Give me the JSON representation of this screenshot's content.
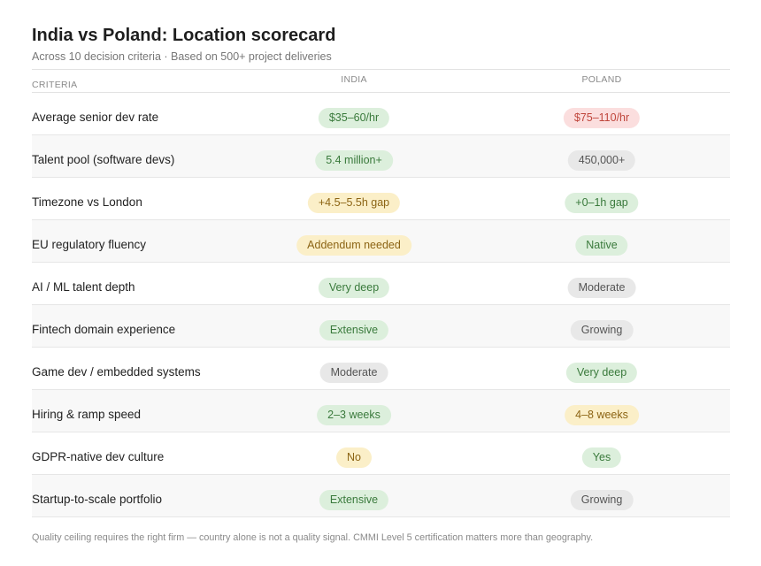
{
  "header": {
    "title": "India vs Poland: Location scorecard",
    "subtitle": "Across 10 decision criteria · Based on 500+ project deliveries"
  },
  "columns": {
    "criteria": "CRITERIA",
    "india": "INDIA",
    "poland": "POLAND"
  },
  "status_colors": {
    "green": "#dcefdc",
    "red": "#fbdede",
    "amber": "#fbefc8",
    "gray": "#e8e8e8"
  },
  "rows": [
    {
      "criterion": "Average senior dev rate",
      "india": "$35–60/hr",
      "india_tone": "green",
      "poland": "$75–110/hr",
      "poland_tone": "red"
    },
    {
      "criterion": "Talent pool (software devs)",
      "india": "5.4 million+",
      "india_tone": "green",
      "poland": "450,000+",
      "poland_tone": "gray"
    },
    {
      "criterion": "Timezone vs London",
      "india": "+4.5–5.5h gap",
      "india_tone": "amber",
      "poland": "+0–1h gap",
      "poland_tone": "green"
    },
    {
      "criterion": "EU regulatory fluency",
      "india": "Addendum needed",
      "india_tone": "amber",
      "poland": "Native",
      "poland_tone": "green"
    },
    {
      "criterion": "AI / ML talent depth",
      "india": "Very deep",
      "india_tone": "green",
      "poland": "Moderate",
      "poland_tone": "gray"
    },
    {
      "criterion": "Fintech domain experience",
      "india": "Extensive",
      "india_tone": "green",
      "poland": "Growing",
      "poland_tone": "gray"
    },
    {
      "criterion": "Game dev / embedded systems",
      "india": "Moderate",
      "india_tone": "gray",
      "poland": "Very deep",
      "poland_tone": "green"
    },
    {
      "criterion": "Hiring & ramp speed",
      "india": "2–3 weeks",
      "india_tone": "green",
      "poland": "4–8 weeks",
      "poland_tone": "amber"
    },
    {
      "criterion": "GDPR-native dev culture",
      "india": "No",
      "india_tone": "amber",
      "poland": "Yes",
      "poland_tone": "green"
    },
    {
      "criterion": "Startup-to-scale portfolio",
      "india": "Extensive",
      "india_tone": "green",
      "poland": "Growing",
      "poland_tone": "gray"
    }
  ],
  "footer": "Quality ceiling requires the right firm — country alone is not a quality signal. CMMI Level 5 certification matters more than geography."
}
